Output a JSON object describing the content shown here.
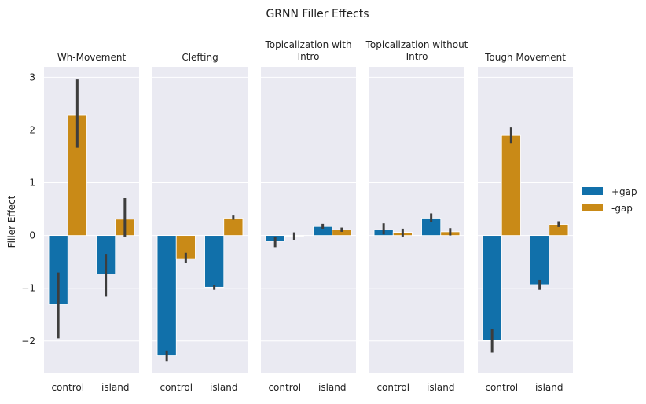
{
  "chart_data": {
    "type": "bar",
    "title": "GRNN Filler Effects",
    "ylabel": "Filler Effect",
    "xlabel": "",
    "ylim": [
      -2.6,
      3.2
    ],
    "yticks": [
      -2,
      -1,
      0,
      1,
      2,
      3
    ],
    "categories": [
      "control",
      "island"
    ],
    "legend": {
      "placement": "right",
      "entries": [
        "+gap",
        "-gap"
      ]
    },
    "series_colors": {
      "+gap": "#1170aa",
      "-gap": "#c98a17"
    },
    "grid": true,
    "panels": [
      {
        "title": [
          "Wh-Movement"
        ],
        "bars": [
          {
            "category": "control",
            "series": "+gap",
            "value": -1.31,
            "ci": [
              -1.95,
              -0.7
            ]
          },
          {
            "category": "control",
            "series": "-gap",
            "value": 2.29,
            "ci": [
              1.67,
              2.96
            ]
          },
          {
            "category": "island",
            "series": "+gap",
            "value": -0.73,
            "ci": [
              -1.16,
              -0.35
            ]
          },
          {
            "category": "island",
            "series": "-gap",
            "value": 0.31,
            "ci": [
              -0.02,
              0.71
            ]
          }
        ]
      },
      {
        "title": [
          "Clefting"
        ],
        "bars": [
          {
            "category": "control",
            "series": "+gap",
            "value": -2.28,
            "ci": [
              -2.38,
              -2.18
            ]
          },
          {
            "category": "control",
            "series": "-gap",
            "value": -0.44,
            "ci": [
              -0.52,
              -0.33
            ]
          },
          {
            "category": "island",
            "series": "+gap",
            "value": -0.98,
            "ci": [
              -1.03,
              -0.93
            ]
          },
          {
            "category": "island",
            "series": "-gap",
            "value": 0.33,
            "ci": [
              0.3,
              0.38
            ]
          }
        ]
      },
      {
        "title": [
          "Topicalization with",
          "Intro"
        ],
        "bars": [
          {
            "category": "control",
            "series": "+gap",
            "value": -0.11,
            "ci": [
              -0.22,
              -0.02
            ]
          },
          {
            "category": "control",
            "series": "-gap",
            "value": -0.01,
            "ci": [
              -0.08,
              0.06
            ]
          },
          {
            "category": "island",
            "series": "+gap",
            "value": 0.17,
            "ci": [
              0.13,
              0.22
            ]
          },
          {
            "category": "island",
            "series": "-gap",
            "value": 0.11,
            "ci": [
              0.07,
              0.15
            ]
          }
        ]
      },
      {
        "title": [
          "Topicalization without",
          "Intro"
        ],
        "bars": [
          {
            "category": "control",
            "series": "+gap",
            "value": 0.11,
            "ci": [
              0.02,
              0.23
            ]
          },
          {
            "category": "control",
            "series": "-gap",
            "value": 0.06,
            "ci": [
              -0.02,
              0.13
            ]
          },
          {
            "category": "island",
            "series": "+gap",
            "value": 0.33,
            "ci": [
              0.25,
              0.42
            ]
          },
          {
            "category": "island",
            "series": "-gap",
            "value": 0.07,
            "ci": [
              0.0,
              0.14
            ]
          }
        ]
      },
      {
        "title": [
          "Tough Movement"
        ],
        "bars": [
          {
            "category": "control",
            "series": "+gap",
            "value": -1.99,
            "ci": [
              -2.22,
              -1.78
            ]
          },
          {
            "category": "control",
            "series": "-gap",
            "value": 1.9,
            "ci": [
              1.75,
              2.05
            ]
          },
          {
            "category": "island",
            "series": "+gap",
            "value": -0.93,
            "ci": [
              -1.03,
              -0.84
            ]
          },
          {
            "category": "island",
            "series": "-gap",
            "value": 0.21,
            "ci": [
              0.16,
              0.27
            ]
          }
        ]
      }
    ]
  }
}
